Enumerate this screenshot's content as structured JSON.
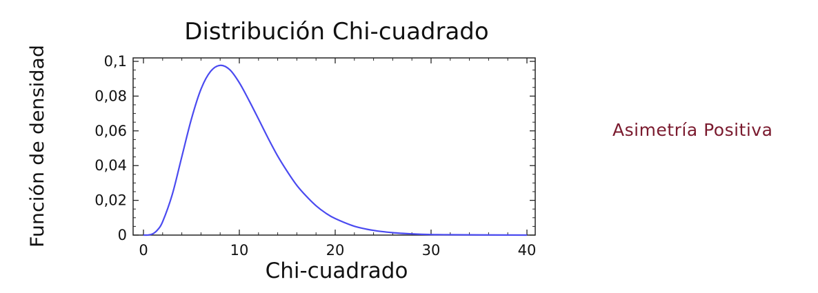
{
  "side_note": {
    "text": "Asimetría Positiva",
    "color": "#7a1a2e"
  },
  "chart_data": {
    "type": "line",
    "title": "Distribución Chi-cuadrado",
    "xlabel": "Chi-cuadrado",
    "ylabel": "Función de densidad",
    "xlim": [
      0,
      40
    ],
    "ylim": [
      0,
      0.1
    ],
    "x_ticks": [
      0,
      10,
      20,
      30,
      40
    ],
    "x_tick_labels": [
      "0",
      "10",
      "20",
      "30",
      "40"
    ],
    "y_ticks": [
      0,
      0.02,
      0.04,
      0.06,
      0.08,
      0.1
    ],
    "y_tick_labels": [
      "0",
      "0,02",
      "0,04",
      "0,06",
      "0,08",
      "0,1"
    ],
    "grid": false,
    "legend": "none",
    "line_color": "#4a4af0",
    "series": [
      {
        "x": [
          0,
          0.5,
          1,
          1.5,
          2,
          3,
          4,
          5,
          6,
          7,
          8,
          9,
          10,
          11,
          12,
          13,
          14,
          15,
          16,
          17,
          18,
          19,
          20,
          22,
          24,
          26,
          28,
          30,
          32,
          35,
          40
        ],
        "values": [
          0,
          6e-05,
          0.0008,
          0.0032,
          0.0077,
          0.0233,
          0.0451,
          0.0668,
          0.084,
          0.0942,
          0.0977,
          0.0952,
          0.0877,
          0.0776,
          0.0668,
          0.0558,
          0.0455,
          0.0366,
          0.0286,
          0.0223,
          0.0169,
          0.0127,
          0.0095,
          0.0051,
          0.0027,
          0.0014,
          0.0007,
          0.0003,
          0.0002,
          0.0001,
          0
        ]
      }
    ]
  }
}
